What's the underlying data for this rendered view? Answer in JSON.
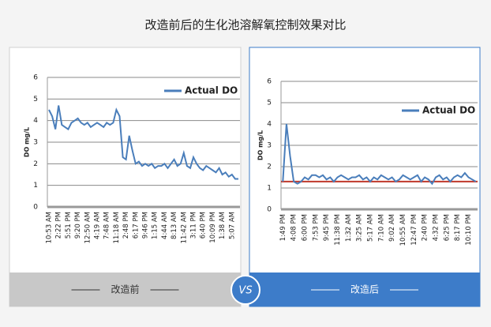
{
  "title": "改造前后的生化池溶解氧控制效果对比",
  "vs": "VS",
  "chart_data": [
    {
      "type": "line",
      "caption": "改造前",
      "ylabel": "DO mg/L",
      "ylim": [
        0,
        6
      ],
      "yticks": [
        0,
        1,
        2,
        3,
        4,
        5,
        6
      ],
      "grid": true,
      "legend": "upper right",
      "categories": [
        "10:53 AM",
        null,
        null,
        "2:22 PM",
        null,
        null,
        "5:51 PM",
        null,
        null,
        "9:20 PM",
        null,
        null,
        "12:50 AM",
        null,
        null,
        "4:19 AM",
        null,
        null,
        "7:48 AM",
        null,
        null,
        "11:18 AM",
        null,
        null,
        "2:48 PM",
        null,
        null,
        "6:17 PM",
        null,
        null,
        "9:46 PM",
        null,
        null,
        "1:15 AM",
        null,
        null,
        "4:44 AM",
        null,
        null,
        "8:13 AM",
        null,
        null,
        "11:42 AM",
        null,
        null,
        "3:11 PM",
        null,
        null,
        "6:40 PM",
        null,
        null,
        "10:09 PM",
        null,
        null,
        "1:38 AM",
        null,
        null,
        "5:07 AM",
        null,
        null
      ],
      "series": [
        {
          "name": "Actual DO",
          "color": "#4a7ebb",
          "values": [
            4.5,
            4.2,
            3.6,
            4.7,
            3.8,
            3.7,
            3.6,
            3.9,
            4.0,
            4.1,
            3.9,
            3.8,
            3.9,
            3.7,
            3.8,
            3.9,
            3.8,
            3.7,
            3.9,
            3.8,
            3.9,
            4.5,
            4.2,
            2.3,
            2.2,
            3.3,
            2.6,
            2.0,
            2.1,
            1.9,
            2.0,
            1.9,
            2.0,
            1.8,
            1.9,
            1.9,
            2.0,
            1.8,
            2.0,
            2.2,
            1.9,
            2.0,
            2.5,
            1.9,
            1.8,
            2.3,
            2.0,
            1.8,
            1.7,
            1.9,
            1.8,
            1.7,
            1.6,
            1.8,
            1.5,
            1.6,
            1.4,
            1.5,
            1.3,
            1.3
          ]
        }
      ]
    },
    {
      "type": "line",
      "caption": "改造后",
      "ylabel": "DO mg/L",
      "ylim": [
        0,
        6
      ],
      "yticks": [
        0,
        1,
        2,
        3,
        4,
        5,
        6
      ],
      "grid": true,
      "legend": "upper right",
      "reference_line": {
        "value": 1.3,
        "color": "#c0392b"
      },
      "categories": [
        "1:49 PM",
        null,
        null,
        "4:08 PM",
        null,
        null,
        "6:00 PM",
        null,
        null,
        "7:53 PM",
        null,
        null,
        "9:45 PM",
        null,
        null,
        "11:38 PM",
        null,
        null,
        "1:32 AM",
        null,
        null,
        "3:25 AM",
        null,
        null,
        "5:17 AM",
        null,
        null,
        "7:10 AM",
        null,
        null,
        "9:02 AM",
        null,
        null,
        "10:55 AM",
        null,
        null,
        "12:47 PM",
        null,
        null,
        "2:40 PM",
        null,
        null,
        "4:32 PM",
        null,
        null,
        "6:25 PM",
        null,
        null,
        "8:17 PM",
        null,
        null,
        "10:10 PM",
        null,
        null
      ],
      "series": [
        {
          "name": "Actual DO",
          "color": "#4a7ebb",
          "values": [
            1.3,
            4.0,
            2.5,
            1.3,
            1.2,
            1.3,
            1.5,
            1.4,
            1.6,
            1.6,
            1.5,
            1.6,
            1.4,
            1.5,
            1.3,
            1.5,
            1.6,
            1.5,
            1.4,
            1.5,
            1.5,
            1.6,
            1.4,
            1.5,
            1.3,
            1.5,
            1.4,
            1.6,
            1.5,
            1.4,
            1.5,
            1.3,
            1.4,
            1.6,
            1.5,
            1.4,
            1.5,
            1.6,
            1.3,
            1.5,
            1.4,
            1.2,
            1.5,
            1.6,
            1.4,
            1.5,
            1.3,
            1.5,
            1.6,
            1.5,
            1.7,
            1.5,
            1.4,
            1.3
          ]
        }
      ]
    }
  ]
}
